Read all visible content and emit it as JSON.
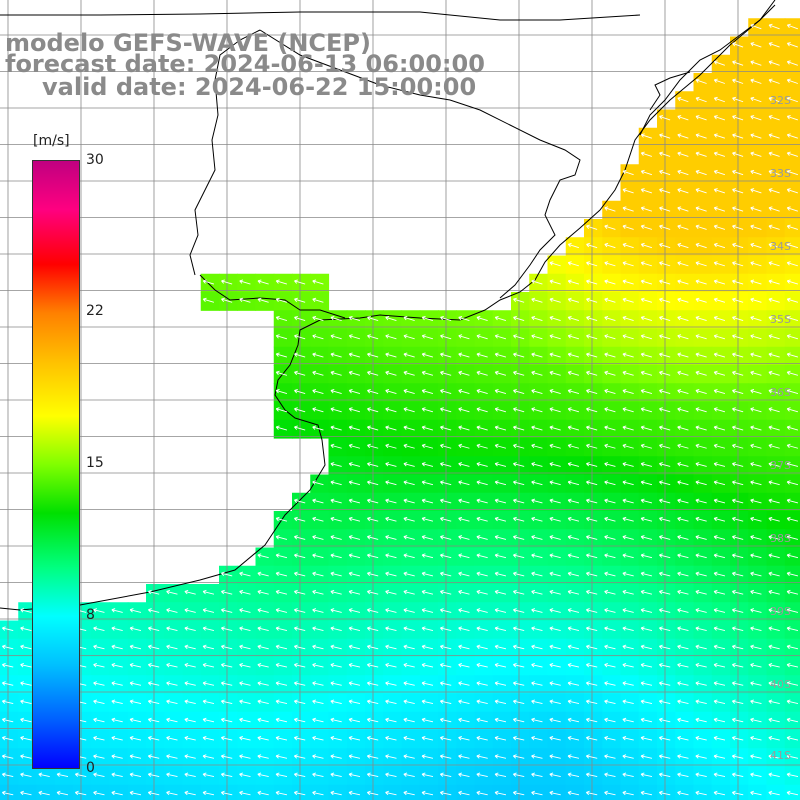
{
  "title": {
    "model": "modelo GEFS-WAVE (NCEP)",
    "forecast": "forecast date: 2024-06-13 06:00:00",
    "valid": "valid date: 2024-06-22 15:00:00"
  },
  "colorbar": {
    "unit": "[m/s]",
    "min": 0,
    "max": 30,
    "ticks": [
      0,
      8,
      15,
      22,
      30
    ],
    "colors": [
      "#0000ff",
      "#0060ff",
      "#00c0ff",
      "#00ffff",
      "#00ff80",
      "#00e000",
      "#80ff00",
      "#ffff00",
      "#ffc000",
      "#ff8000",
      "#ff0000",
      "#ff0080",
      "#c00080"
    ]
  },
  "lat_labels": [
    "32S",
    "33S",
    "34S",
    "35S",
    "36S",
    "37S",
    "38S",
    "39S",
    "40S",
    "41S"
  ],
  "colors": {
    "land": "#ffffff",
    "grid": "#888888",
    "coast": "#000000",
    "arrows": "#ffffff",
    "title": "#8a8a8a"
  },
  "wind_field": {
    "description_direction": "from east/southeast toward west/northwest",
    "speed_range_ms": [
      5,
      19
    ]
  }
}
